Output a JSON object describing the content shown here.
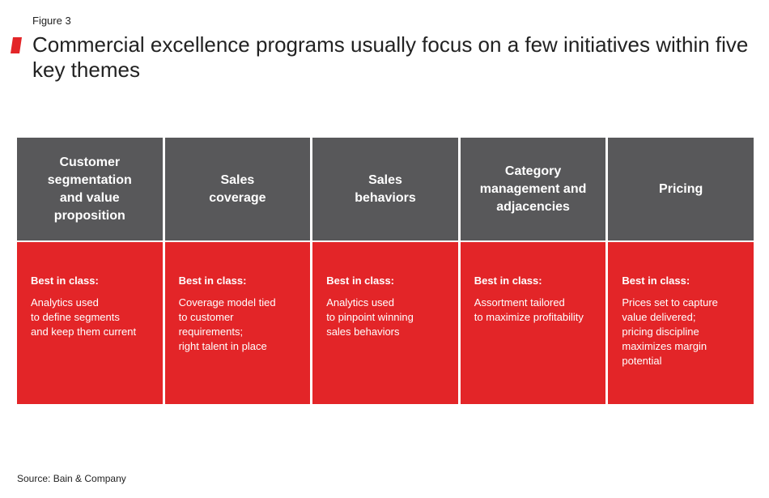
{
  "figure_label": "Figure 3",
  "title": "Commercial excellence programs usually focus on a few initiatives within five key themes",
  "colors": {
    "accent": "#e32528",
    "header_gray": "#58585a"
  },
  "columns": [
    {
      "heading": "Customer\nsegmentation\nand value\nproposition",
      "best_label": "Best in class:",
      "description": "Analytics used\nto define segments\nand keep them current"
    },
    {
      "heading": "Sales\ncoverage",
      "best_label": "Best in class:",
      "description": "Coverage model tied\nto customer requirements;\nright talent in place"
    },
    {
      "heading": "Sales\nbehaviors",
      "best_label": "Best in class:",
      "description": "Analytics used\nto pinpoint winning\nsales behaviors"
    },
    {
      "heading": "Category\nmanagement and\nadjacencies",
      "best_label": "Best in class:",
      "description": "Assortment tailored\nto maximize profitability"
    },
    {
      "heading": "Pricing",
      "best_label": "Best in class:",
      "description": "Prices set to capture\nvalue delivered;\npricing discipline\nmaximizes margin\npotential"
    }
  ],
  "source": "Source: Bain & Company"
}
